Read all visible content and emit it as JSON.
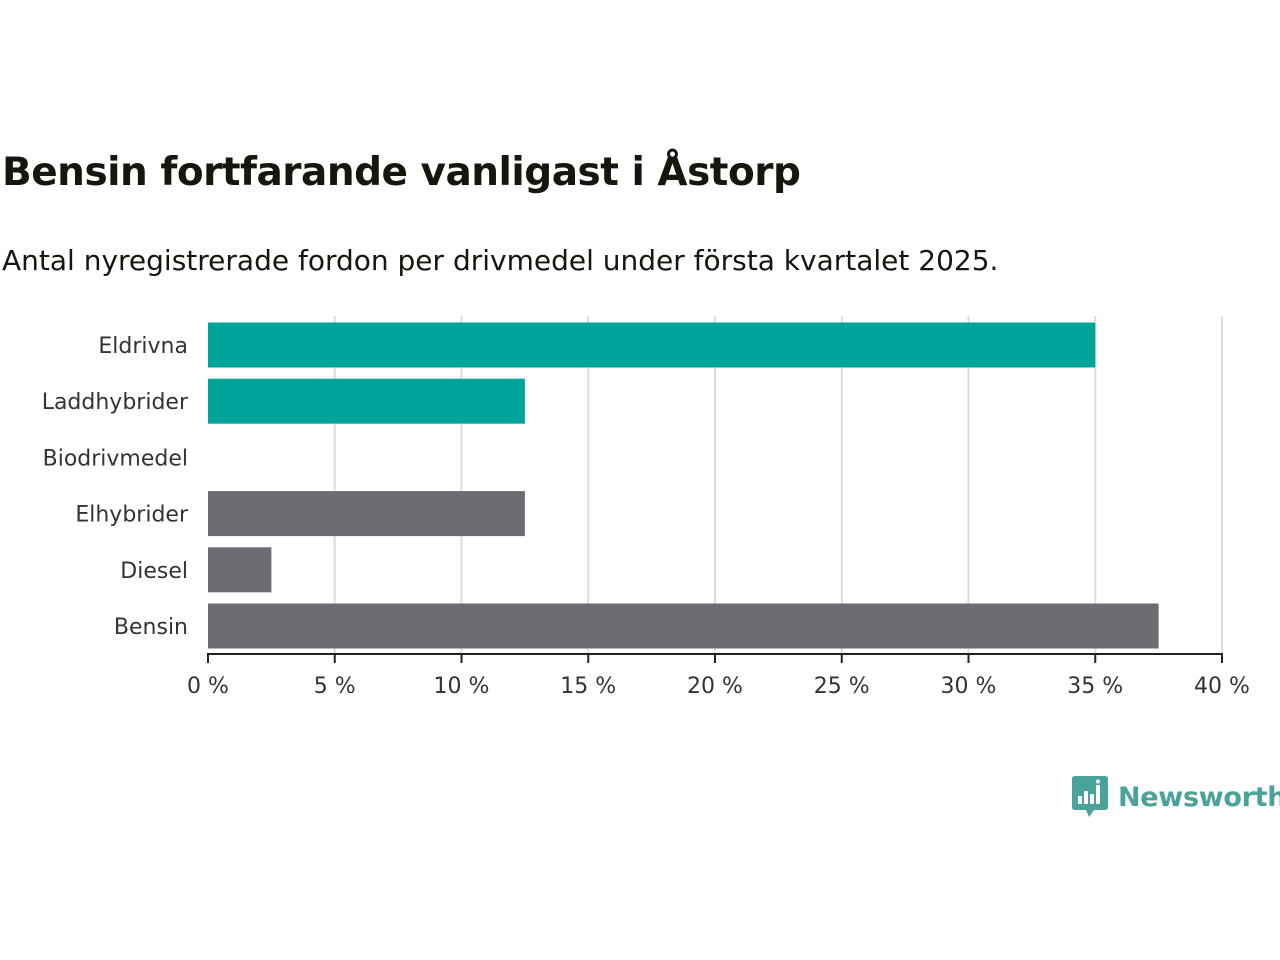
{
  "title": "Bensin fortfarande vanligast i Åstorp",
  "subtitle": "Antal nyregistrerade fordon per drivmedel under första kvartalet 2025.",
  "brand": {
    "name": "Newsworthy",
    "color": "#4aa39a",
    "icon": "bar-chart-speech-bubble-icon"
  },
  "chart_data": {
    "type": "bar",
    "orientation": "horizontal",
    "categories": [
      "Eldrivna",
      "Laddhybrider",
      "Biodrivmedel",
      "Elhybrider",
      "Diesel",
      "Bensin"
    ],
    "values": [
      35,
      12.5,
      0,
      12.5,
      2.5,
      37.5
    ],
    "colors": [
      "#00a49a",
      "#00a49a",
      "#00a49a",
      "#6d6c72",
      "#6d6c72",
      "#6d6c72"
    ],
    "xlim": [
      0,
      40
    ],
    "xticks": [
      0,
      5,
      10,
      15,
      20,
      25,
      30,
      35,
      40
    ],
    "xtick_labels": [
      "0 %",
      "5 %",
      "10 %",
      "15 %",
      "20 %",
      "25 %",
      "30 %",
      "35 %",
      "40 %"
    ],
    "xlabel": "",
    "ylabel": "",
    "grid": "vertical",
    "legend": "none"
  }
}
